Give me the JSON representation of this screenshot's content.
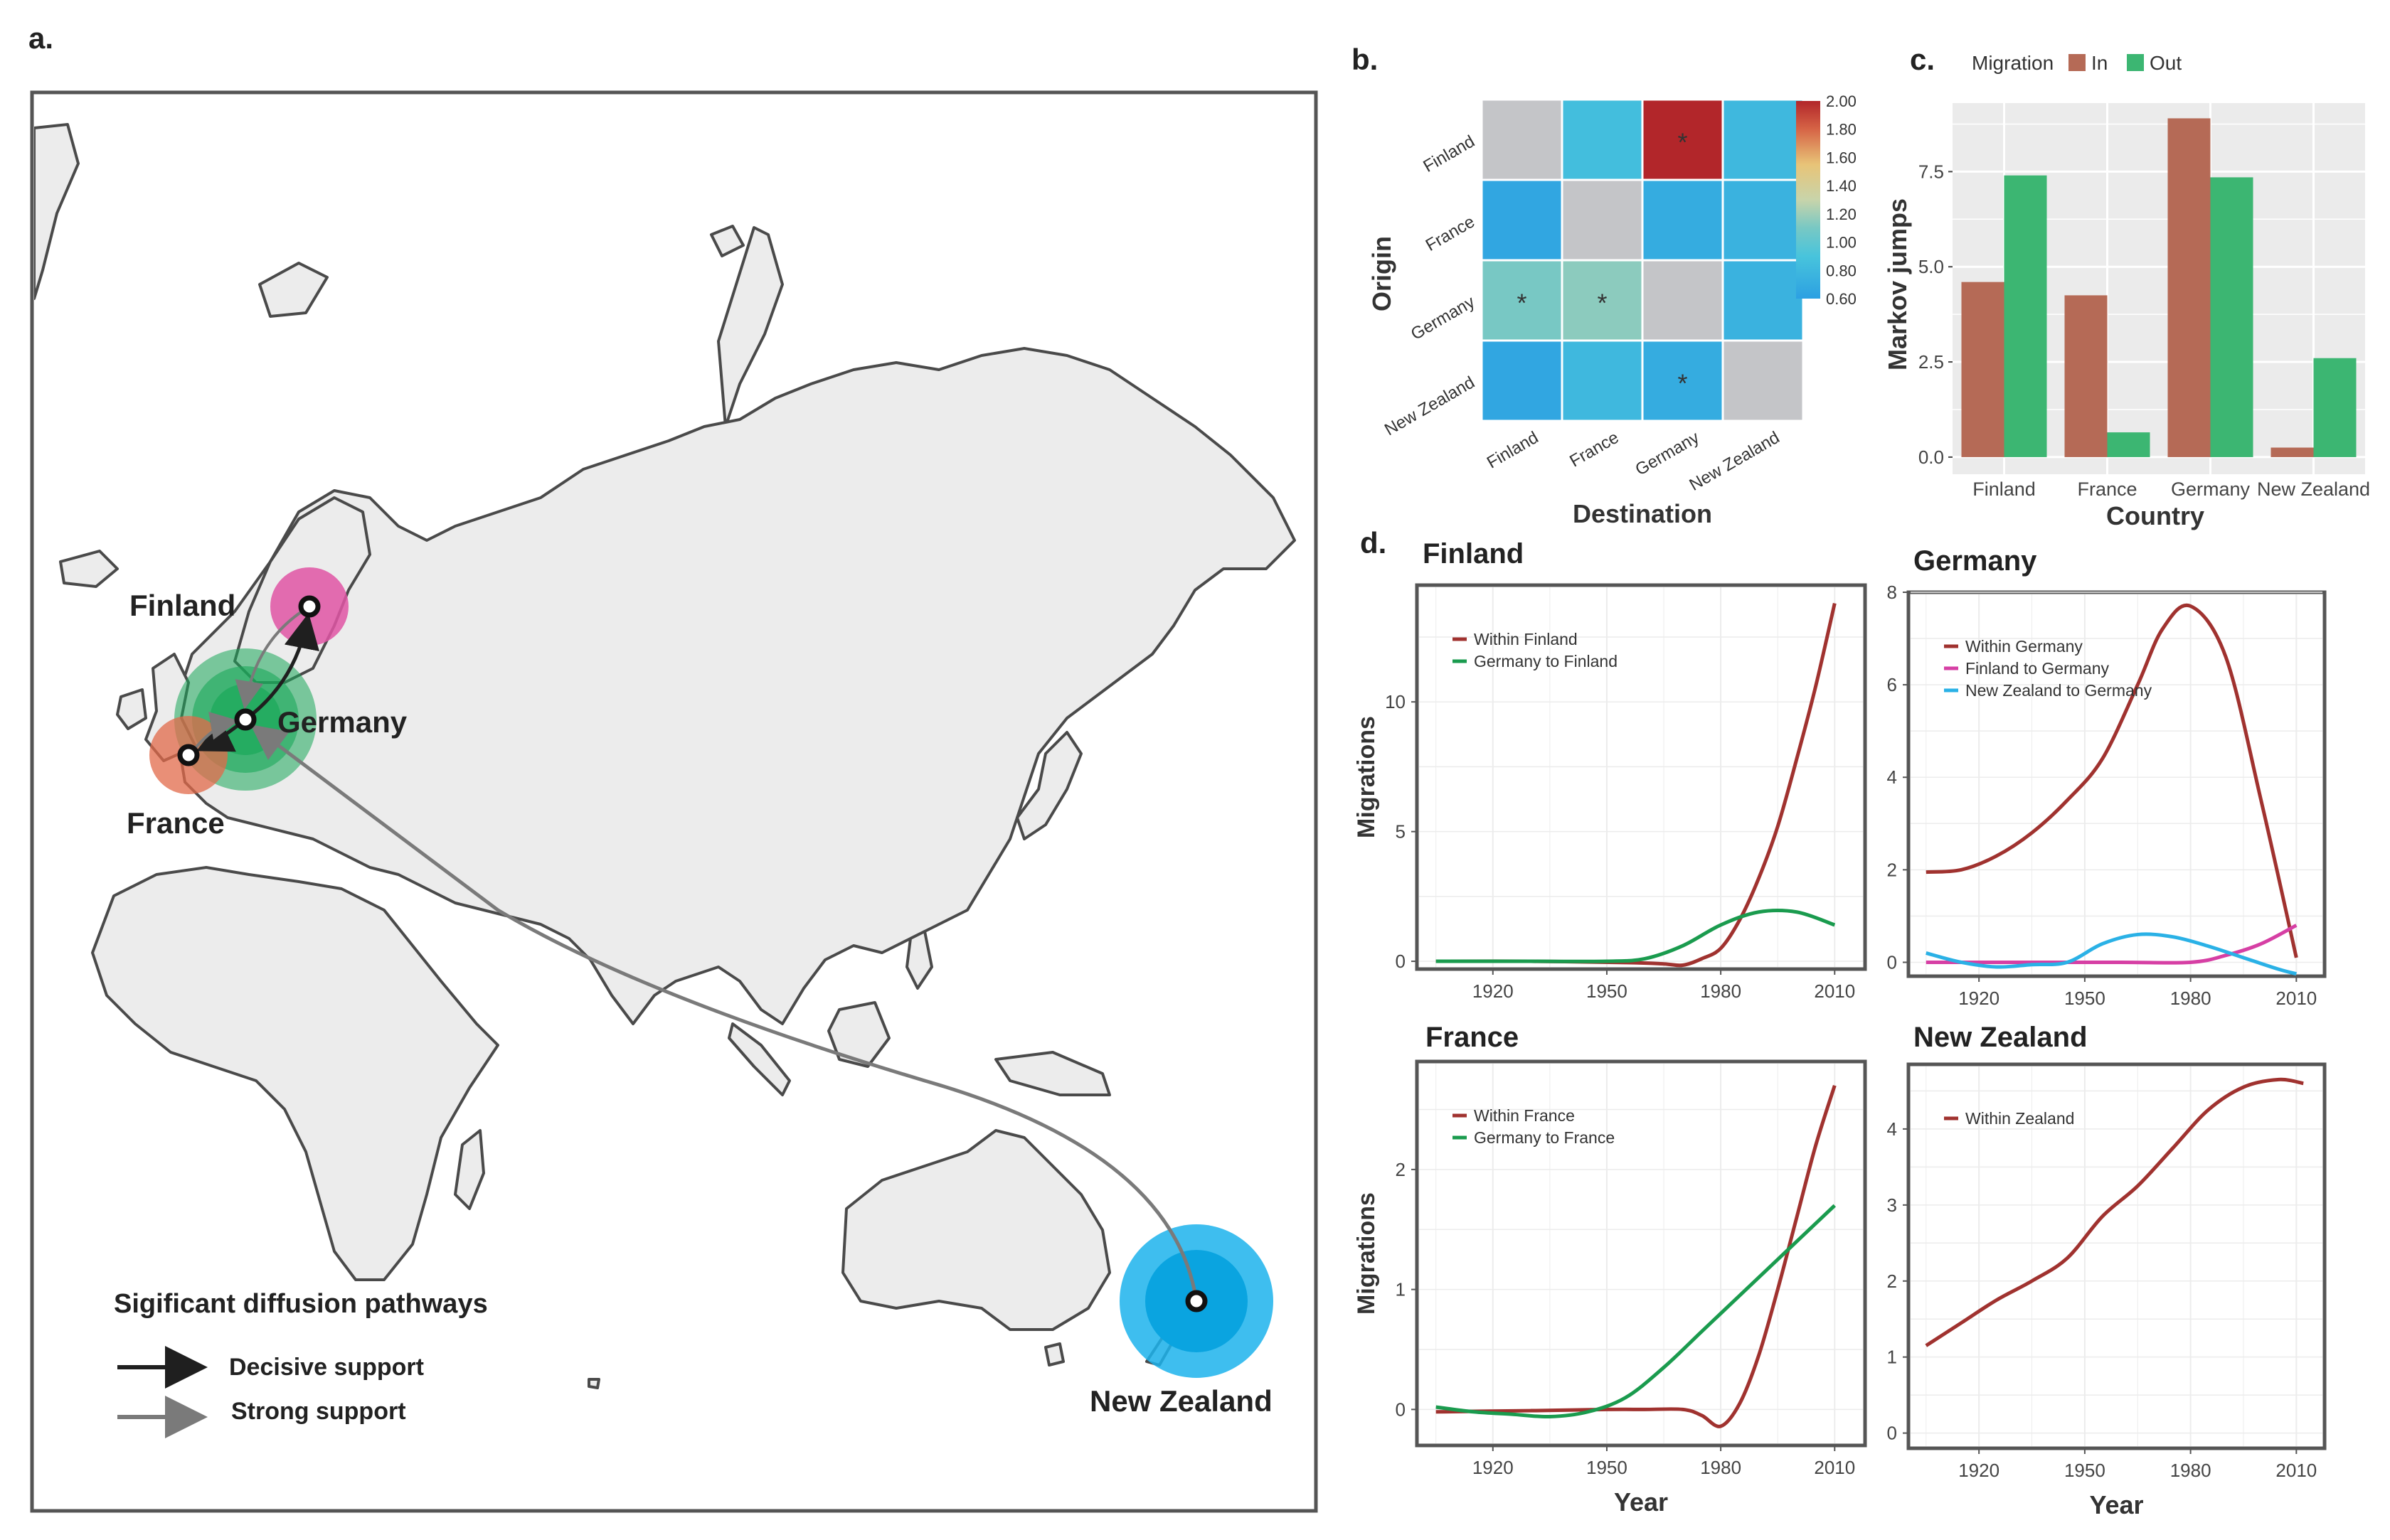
{
  "panel_labels": {
    "a": "a.",
    "b": "b.",
    "c": "c.",
    "d": "d."
  },
  "map": {
    "countries": [
      {
        "name": "Finland",
        "label": "Finland",
        "color": "#e055a4"
      },
      {
        "name": "Germany",
        "label": "Germany",
        "color": "#1aa85a"
      },
      {
        "name": "France",
        "label": "France",
        "color": "#e26a4a"
      },
      {
        "name": "New Zealand",
        "label": "New Zealand",
        "color": "#1cb3ec"
      }
    ],
    "legend_title": "Sigificant diffusion pathways",
    "legend_items": [
      {
        "label": "Decisive support",
        "color": "#1f1f1f"
      },
      {
        "label": "Strong support",
        "color": "#7a7a7a"
      }
    ]
  },
  "chart_data": [
    {
      "id": "b",
      "type": "heatmap",
      "ylabel": "Origin",
      "xlabel": "Destination",
      "rows": [
        "Finland",
        "France",
        "Germany",
        "New Zealand"
      ],
      "cols": [
        "Finland",
        "France",
        "Germany",
        "New Zealand"
      ],
      "values": [
        [
          null,
          0.85,
          2.0,
          0.8
        ],
        [
          0.65,
          null,
          0.7,
          0.75
        ],
        [
          1.1,
          1.15,
          null,
          0.75
        ],
        [
          0.65,
          0.8,
          0.7,
          null
        ]
      ],
      "significant": [
        [
          0,
          2
        ],
        [
          2,
          0
        ],
        [
          2,
          1
        ],
        [
          3,
          2
        ]
      ],
      "marker": "*",
      "colorbar_ticks": [
        "2.00",
        "1.80",
        "1.60",
        "1.40",
        "1.20",
        "1.00",
        "0.80",
        "0.60"
      ],
      "range": [
        0.6,
        2.0
      ]
    },
    {
      "id": "c",
      "type": "bar",
      "legend_title": "Migration",
      "categories": [
        "Finland",
        "France",
        "Germany",
        "New Zealand"
      ],
      "series": [
        {
          "name": "In",
          "color": "#b56a56",
          "values": [
            4.6,
            4.25,
            8.9,
            0.25
          ]
        },
        {
          "name": "Out",
          "color": "#3cb672",
          "values": [
            7.4,
            0.65,
            7.35,
            2.6
          ]
        }
      ],
      "ylabel": "Markov jumps",
      "xlabel": "Country",
      "yticks": [
        "0.0",
        "2.5",
        "5.0",
        "7.5"
      ],
      "ylim": [
        -0.45,
        9.3
      ]
    },
    {
      "id": "d-finland",
      "type": "line",
      "title": "Finland",
      "ylabel": "Migrations",
      "xlabel": "",
      "xticks": [
        "1920",
        "1950",
        "1980",
        "2010"
      ],
      "yticks": [
        "0",
        "5",
        "10"
      ],
      "xlim": [
        1900,
        2018
      ],
      "ylim": [
        -0.3,
        14.5
      ],
      "series": [
        {
          "name": "Within Finland",
          "color": "#a0322f",
          "x": [
            1905,
            1930,
            1955,
            1965,
            1970,
            1975,
            1980,
            1985,
            1990,
            1995,
            2000,
            2005,
            2010
          ],
          "y": [
            0,
            0,
            -0.05,
            -0.1,
            -0.15,
            0.1,
            0.5,
            1.6,
            3.2,
            5.2,
            7.8,
            10.6,
            13.8
          ]
        },
        {
          "name": "Germany to Finland",
          "color": "#1a9b4e",
          "x": [
            1905,
            1930,
            1950,
            1960,
            1970,
            1980,
            1990,
            2000,
            2010
          ],
          "y": [
            0,
            0,
            0,
            0.1,
            0.6,
            1.4,
            1.9,
            1.9,
            1.4
          ]
        }
      ]
    },
    {
      "id": "d-germany",
      "type": "line",
      "title": "Germany",
      "ylabel": "",
      "xlabel": "",
      "xticks": [
        "1920",
        "1950",
        "1980",
        "2010"
      ],
      "yticks": [
        "0",
        "2",
        "4",
        "6",
        "8"
      ],
      "xlim": [
        1900,
        2018
      ],
      "ylim": [
        -0.3,
        8.0
      ],
      "series": [
        {
          "name": "Within Germany",
          "color": "#a0322f",
          "x": [
            1905,
            1915,
            1925,
            1935,
            1945,
            1955,
            1965,
            1972,
            1980,
            1990,
            2000,
            2010
          ],
          "y": [
            1.95,
            2.0,
            2.3,
            2.8,
            3.5,
            4.4,
            6.0,
            7.2,
            7.7,
            6.6,
            3.5,
            0.1
          ]
        },
        {
          "name": "Finland to Germany",
          "color": "#d63fa4",
          "x": [
            1905,
            1930,
            1960,
            1980,
            1990,
            2000,
            2010
          ],
          "y": [
            0,
            0,
            0,
            0,
            0.15,
            0.4,
            0.8
          ]
        },
        {
          "name": "New Zealand to Germany",
          "color": "#2ab1e6",
          "x": [
            1905,
            1915,
            1925,
            1935,
            1945,
            1955,
            1965,
            1975,
            1985,
            1995,
            2005,
            2010
          ],
          "y": [
            0.2,
            0.0,
            -0.1,
            -0.05,
            0.0,
            0.4,
            0.6,
            0.55,
            0.35,
            0.1,
            -0.15,
            -0.25
          ]
        }
      ]
    },
    {
      "id": "d-france",
      "type": "line",
      "title": "France",
      "ylabel": "Migrations",
      "xlabel": "Year",
      "xticks": [
        "1920",
        "1950",
        "1980",
        "2010"
      ],
      "yticks": [
        "0",
        "1",
        "2"
      ],
      "xlim": [
        1900,
        2018
      ],
      "ylim": [
        -0.3,
        2.9
      ],
      "series": [
        {
          "name": "Within France",
          "color": "#a0322f",
          "x": [
            1905,
            1930,
            1950,
            1960,
            1970,
            1975,
            1980,
            1985,
            1990,
            1995,
            2000,
            2005,
            2010
          ],
          "y": [
            -0.02,
            -0.01,
            0,
            0,
            0,
            -0.05,
            -0.14,
            0.05,
            0.45,
            1.0,
            1.6,
            2.2,
            2.7
          ]
        },
        {
          "name": "Germany to France",
          "color": "#1a9b4e",
          "x": [
            1905,
            1915,
            1925,
            1935,
            1945,
            1955,
            1965,
            1975,
            1985,
            1995,
            2005,
            2010
          ],
          "y": [
            0.02,
            -0.02,
            -0.04,
            -0.06,
            -0.02,
            0.1,
            0.35,
            0.65,
            0.95,
            1.25,
            1.55,
            1.7
          ]
        }
      ]
    },
    {
      "id": "d-newzealand",
      "type": "line",
      "title": "New Zealand",
      "ylabel": "",
      "xlabel": "Year",
      "xticks": [
        "1920",
        "1950",
        "1980",
        "2010"
      ],
      "yticks": [
        "0",
        "1",
        "2",
        "3",
        "4"
      ],
      "xlim": [
        1900,
        2018
      ],
      "ylim": [
        -0.2,
        4.85
      ],
      "series": [
        {
          "name": "Within Zealand",
          "color": "#a0322f",
          "x": [
            1905,
            1915,
            1925,
            1935,
            1945,
            1955,
            1965,
            1975,
            1985,
            1995,
            2005,
            2012
          ],
          "y": [
            1.15,
            1.45,
            1.75,
            2.0,
            2.3,
            2.85,
            3.25,
            3.75,
            4.25,
            4.55,
            4.65,
            4.6
          ]
        }
      ]
    }
  ]
}
